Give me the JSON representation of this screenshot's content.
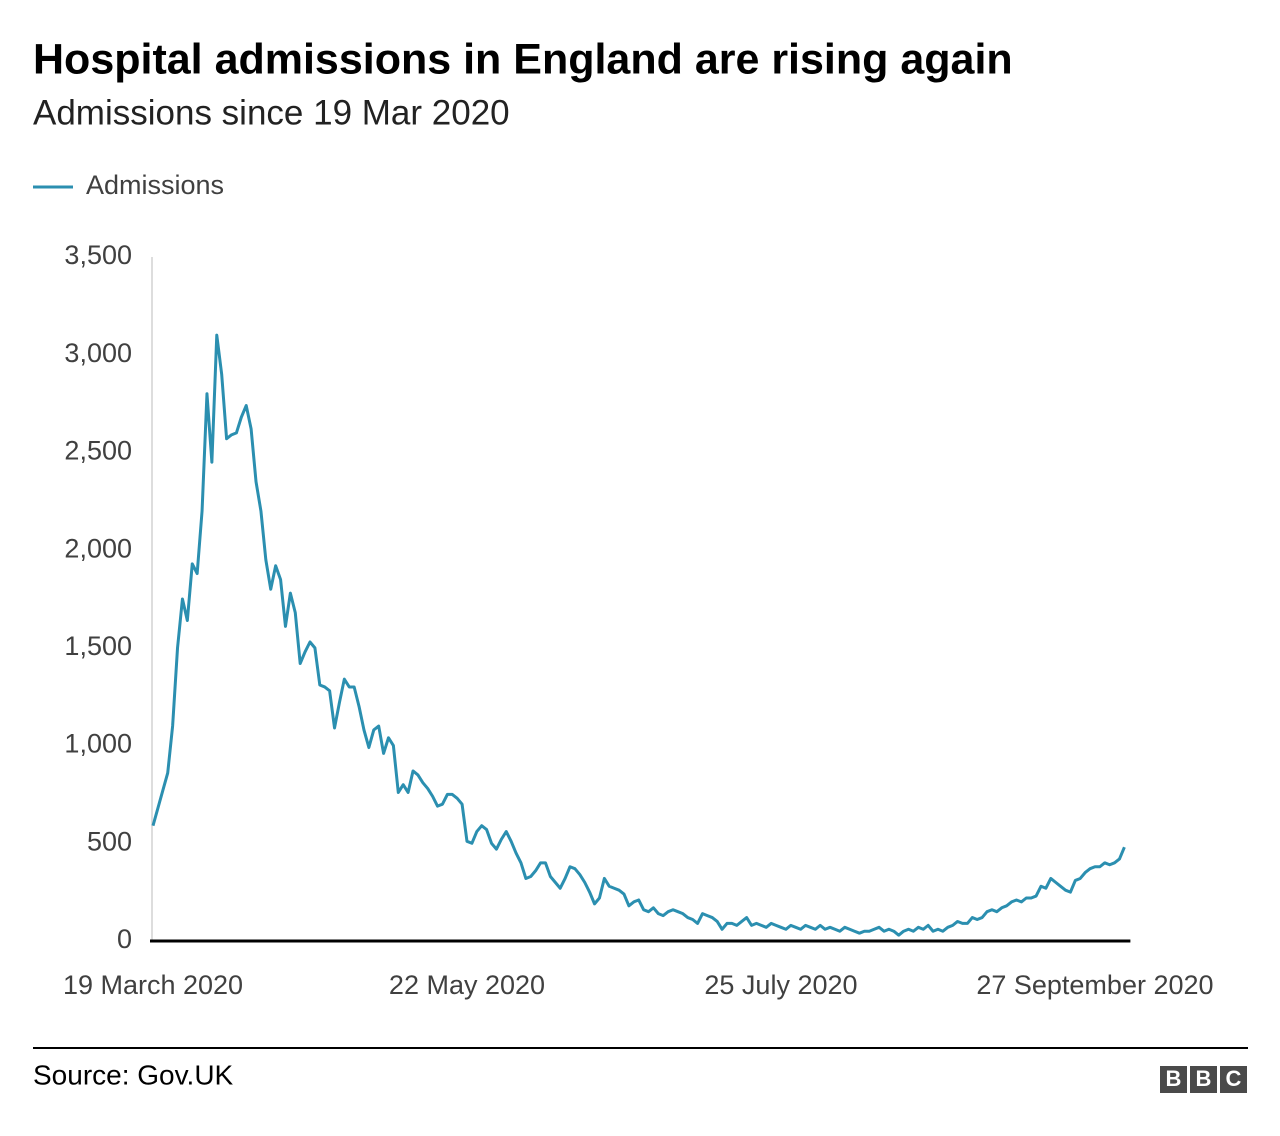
{
  "chart_data": {
    "type": "line",
    "title": "Hospital admissions in England are rising again",
    "subtitle": "Admissions since 19 Mar 2020",
    "source": "Source: Gov.UK",
    "logo": [
      "B",
      "B",
      "C"
    ],
    "grid": false,
    "legend": "top-left",
    "ylim": [
      0,
      3500
    ],
    "yticks": [
      0,
      500,
      {
        "value": 1000,
        "label": "1,000"
      },
      {
        "value": 1500,
        "label": "1,500"
      },
      {
        "value": 2000,
        "label": "2,000"
      },
      {
        "value": 2500,
        "label": "2,500"
      },
      {
        "value": 3000,
        "label": "3,000"
      },
      {
        "value": 3500,
        "label": "3,500"
      }
    ],
    "categories": [
      "19 March 2020",
      null,
      null,
      null,
      null,
      null,
      null,
      null,
      null,
      null,
      null,
      null,
      null,
      null,
      null,
      null,
      null,
      null,
      null,
      null,
      null,
      null,
      null,
      null,
      null,
      null,
      null,
      null,
      null,
      null,
      null,
      null,
      null,
      null,
      null,
      null,
      null,
      null,
      null,
      null,
      null,
      null,
      null,
      null,
      null,
      null,
      null,
      null,
      null,
      null,
      null,
      null,
      null,
      null,
      null,
      null,
      null,
      null,
      null,
      null,
      null,
      null,
      null,
      null,
      "22 May 2020",
      null,
      null,
      null,
      null,
      null,
      null,
      null,
      null,
      null,
      null,
      null,
      null,
      null,
      null,
      null,
      null,
      null,
      null,
      null,
      null,
      null,
      null,
      null,
      null,
      null,
      null,
      null,
      null,
      null,
      null,
      null,
      null,
      null,
      null,
      null,
      null,
      null,
      null,
      null,
      null,
      null,
      null,
      null,
      null,
      null,
      null,
      null,
      null,
      null,
      null,
      null,
      null,
      null,
      null,
      null,
      null,
      null,
      null,
      null,
      null,
      null,
      null,
      null,
      "25 July 2020",
      null,
      null,
      null,
      null,
      null,
      null,
      null,
      null,
      null,
      null,
      null,
      null,
      null,
      null,
      null,
      null,
      null,
      null,
      null,
      null,
      null,
      null,
      null,
      null,
      null,
      null,
      null,
      null,
      null,
      null,
      null,
      null,
      null,
      null,
      null,
      null,
      null,
      null,
      null,
      null,
      null,
      null,
      null,
      null,
      null,
      null,
      null,
      null,
      null,
      null,
      null,
      null,
      null,
      null,
      null,
      null,
      null,
      null,
      null,
      null,
      null,
      null,
      null,
      "27 September 2020",
      null,
      null,
      null,
      null,
      null,
      null
    ],
    "series": [
      {
        "name": "Admissions",
        "color": "#2b8fb0",
        "values": [
          590,
          680,
          770,
          860,
          1100,
          1500,
          1750,
          1640,
          1930,
          1880,
          2200,
          2800,
          2450,
          3100,
          2900,
          2570,
          2590,
          2600,
          2680,
          2740,
          2620,
          2350,
          2200,
          1950,
          1800,
          1920,
          1850,
          1610,
          1780,
          1680,
          1420,
          1480,
          1530,
          1500,
          1310,
          1300,
          1280,
          1090,
          1220,
          1340,
          1300,
          1300,
          1200,
          1080,
          990,
          1080,
          1100,
          960,
          1040,
          1000,
          760,
          800,
          760,
          870,
          850,
          810,
          780,
          740,
          690,
          700,
          750,
          750,
          730,
          700,
          510,
          500,
          560,
          590,
          570,
          500,
          470,
          520,
          560,
          510,
          450,
          400,
          320,
          330,
          360,
          400,
          400,
          330,
          300,
          270,
          320,
          380,
          370,
          340,
          300,
          250,
          190,
          220,
          320,
          280,
          270,
          260,
          240,
          180,
          200,
          210,
          160,
          150,
          170,
          140,
          130,
          150,
          160,
          150,
          140,
          120,
          110,
          90,
          140,
          130,
          120,
          100,
          60,
          90,
          90,
          80,
          100,
          120,
          80,
          90,
          80,
          70,
          90,
          80,
          70,
          60,
          80,
          70,
          60,
          80,
          70,
          60,
          80,
          60,
          70,
          60,
          50,
          70,
          60,
          50,
          40,
          50,
          50,
          60,
          70,
          50,
          60,
          50,
          30,
          50,
          60,
          50,
          70,
          60,
          80,
          50,
          60,
          50,
          70,
          80,
          100,
          90,
          90,
          120,
          110,
          120,
          150,
          160,
          150,
          170,
          180,
          200,
          210,
          200,
          220,
          220,
          230,
          280,
          270,
          320,
          300,
          280,
          260,
          250,
          310,
          320,
          350,
          370,
          380,
          380,
          400,
          390,
          400,
          420,
          480
        ]
      }
    ]
  }
}
